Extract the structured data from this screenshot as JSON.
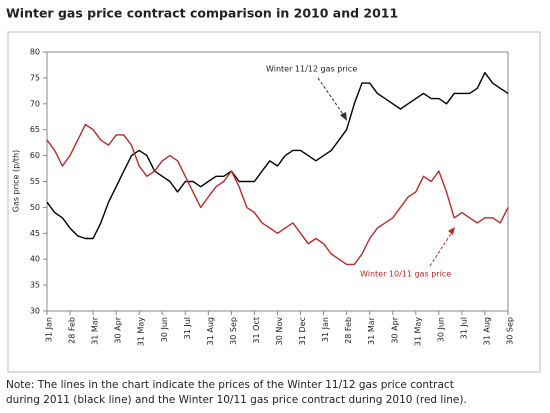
{
  "chart_data": {
    "type": "line",
    "title": "Winter gas price contract comparison in 2010 and 2011",
    "y_label": "Gas price (p/th)",
    "categories": [
      "31 Jan",
      null,
      null,
      "28 Feb",
      null,
      null,
      "31 Mar",
      null,
      null,
      "30 Apr",
      null,
      null,
      "31 May",
      null,
      null,
      "30 Jun",
      null,
      null,
      "31 Jul",
      null,
      null,
      "31 Aug",
      null,
      null,
      "30 Sep",
      null,
      null,
      "31 Oct",
      null,
      null,
      "30 Nov",
      null,
      null,
      "31 Dec",
      null,
      null,
      "31 Jan",
      null,
      null,
      "28 Feb",
      null,
      null,
      "31 Mar",
      null,
      null,
      "30 Apr",
      null,
      null,
      "31 May",
      null,
      null,
      "30 Jun",
      null,
      null,
      "31 Jul",
      null,
      null,
      "31 Aug",
      null,
      null,
      "30 Sep"
    ],
    "series": [
      {
        "name": "Winter 11/12 gas price",
        "color": "#000000",
        "values": [
          51,
          49,
          48,
          46,
          44.5,
          44,
          44,
          47,
          51,
          54,
          57,
          60,
          61,
          60,
          57,
          56,
          55,
          53,
          55,
          55,
          54,
          55,
          56,
          56,
          57,
          55,
          55,
          55,
          57,
          59,
          58,
          60,
          61,
          61,
          60,
          59,
          60,
          61,
          63,
          65,
          70,
          74,
          74,
          72,
          71,
          70,
          69,
          70,
          71,
          72,
          71,
          71,
          70,
          72,
          72,
          72,
          73,
          76,
          74,
          73,
          72
        ]
      },
      {
        "name": "Winter 10/11 gas price",
        "color": "#c0282a",
        "values": [
          63,
          61,
          58,
          60,
          63,
          66,
          65,
          63,
          62,
          64,
          64,
          62,
          58,
          56,
          57,
          59,
          60,
          59,
          56,
          53,
          50,
          52,
          54,
          55,
          57,
          54,
          50,
          49,
          47,
          46,
          45,
          46,
          47,
          45,
          43,
          44,
          43,
          41,
          40,
          39,
          39,
          41,
          44,
          46,
          47,
          48,
          50,
          52,
          53,
          56,
          55,
          57,
          53,
          48,
          49,
          48,
          47,
          48,
          48,
          47,
          50
        ]
      }
    ],
    "ylim": [
      30,
      80
    ],
    "yticks": [
      30,
      35,
      40,
      45,
      50,
      55,
      60,
      65,
      70,
      75,
      80
    ],
    "note": [
      "Note: The lines in the chart indicate the prices of the Winter 11/12 gas price contract",
      "during 2011 (black line) and the Winter 10/11 gas price contract during 2010 (red line)."
    ]
  }
}
